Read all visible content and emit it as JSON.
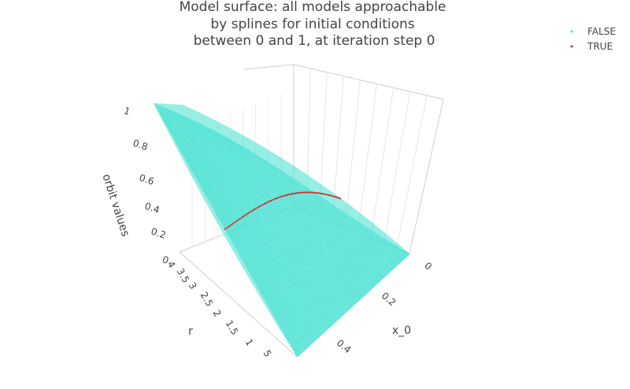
{
  "chart_data": {
    "type": "surface3d-scatter",
    "title_lines": [
      "Model surface: all models approachable",
      "by splines for initial conditions",
      "between 0 and 1, at iteration step 0"
    ],
    "axes": {
      "x": {
        "label": "x_0",
        "ticks": [
          "0",
          "0.2",
          "0.4"
        ],
        "range": [
          0,
          1
        ]
      },
      "y": {
        "label": "r",
        "ticks": [
          "1",
          "1.5",
          "2",
          "2.5",
          "3",
          "3.5",
          "4"
        ],
        "range": [
          0.5,
          4
        ]
      },
      "z": {
        "label": "orbit values",
        "ticks": [
          "0",
          "0.2",
          "0.4",
          "0.6",
          "0.8",
          "1"
        ],
        "range": [
          0,
          1
        ]
      }
    },
    "series": [
      {
        "name": "FALSE",
        "color": "#40e0d0",
        "description_values": "orbit value equals x_0 at iteration 0 for every r"
      },
      {
        "name": "TRUE",
        "color": "#d62728"
      }
    ],
    "legend": {
      "position": "top-right",
      "items": [
        {
          "label": "FALSE",
          "color": "#40e0d0"
        },
        {
          "label": "TRUE",
          "color": "#d62728"
        }
      ]
    },
    "grid": true
  }
}
